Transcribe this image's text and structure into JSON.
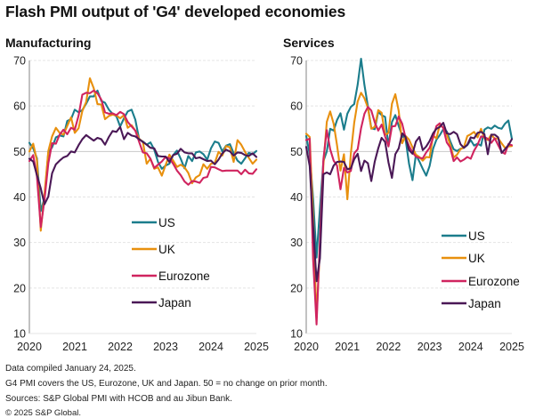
{
  "title": "Flash PMI output of 'G4' developed economies",
  "footnotes": [
    "Data compiled January 24, 2025.",
    "G4 PMI covers the US, Eurozone, UK and Japan. 50 = no change on prior month.",
    "Sources: S&P Global PMI with HCOB and au Jibun Bank.",
    "© 2025 S&P Global."
  ],
  "colors": {
    "US": "#1b7d8c",
    "UK": "#e8900e",
    "Eurozone": "#d0245f",
    "Japan": "#4a1856"
  },
  "chart_data": [
    {
      "type": "line",
      "title": "Manufacturing",
      "xlabel": "",
      "ylabel": "",
      "x_start": "2020-01",
      "x_frequency": "monthly",
      "x_ticks": [
        "2020",
        "2021",
        "2022",
        "2023",
        "2024",
        "2025"
      ],
      "y_ticks": [
        10,
        20,
        30,
        40,
        50,
        60,
        70
      ],
      "ylim": [
        10,
        70
      ],
      "grid": true,
      "legend": "center",
      "series": [
        {
          "name": "US",
          "values": [
            51.9,
            50.7,
            48.5,
            36.9,
            39.8,
            49.8,
            50.9,
            53.1,
            53.5,
            53.3,
            56.7,
            57.1,
            59.2,
            58.6,
            59.1,
            60.5,
            62.1,
            62.1,
            63.4,
            61.1,
            60.7,
            59.2,
            58.3,
            57.7,
            55.5,
            57.3,
            58.8,
            59.2,
            57.0,
            52.7,
            52.2,
            51.5,
            52.0,
            50.4,
            47.7,
            46.2,
            46.9,
            47.3,
            49.2,
            50.2,
            48.4,
            46.3,
            49.0,
            47.9,
            49.8,
            50.0,
            49.4,
            48.2,
            50.7,
            52.2,
            51.9,
            50.0,
            51.3,
            51.6,
            49.6,
            48.0,
            47.3,
            48.5,
            49.7,
            49.4,
            50.1
          ]
        },
        {
          "name": "UK",
          "values": [
            50.0,
            51.7,
            48.0,
            32.6,
            40.7,
            50.1,
            53.3,
            55.2,
            54.1,
            53.7,
            55.6,
            57.5,
            54.1,
            55.1,
            58.9,
            60.9,
            66.1,
            63.9,
            60.4,
            60.3,
            57.1,
            57.8,
            58.1,
            57.9,
            57.3,
            58.0,
            55.2,
            55.8,
            54.6,
            52.8,
            52.1,
            47.3,
            48.4,
            46.2,
            46.5,
            44.7,
            47.0,
            49.3,
            48.0,
            46.6,
            47.1,
            46.5,
            45.3,
            43.0,
            44.3,
            44.8,
            47.2,
            46.2,
            47.3,
            47.5,
            49.9,
            49.1,
            51.2,
            50.9,
            47.7,
            52.5,
            51.5,
            49.9,
            48.6,
            47.3,
            48.2
          ]
        },
        {
          "name": "Eurozone",
          "values": [
            47.9,
            49.2,
            44.5,
            33.4,
            39.4,
            47.4,
            51.8,
            51.7,
            53.7,
            54.8,
            53.8,
            55.2,
            54.8,
            57.9,
            62.5,
            62.9,
            62.8,
            63.4,
            62.8,
            61.4,
            58.6,
            58.3,
            58.4,
            58.0,
            58.7,
            58.2,
            56.5,
            55.5,
            54.6,
            52.1,
            49.8,
            49.6,
            48.4,
            46.4,
            47.1,
            47.8,
            48.8,
            48.5,
            47.3,
            45.8,
            44.8,
            43.4,
            42.7,
            43.5,
            43.4,
            43.1,
            44.2,
            44.4,
            46.6,
            46.5,
            46.1,
            45.7,
            45.8,
            45.8,
            45.8,
            45.8,
            45.0,
            46.0,
            45.2,
            45.1,
            46.1
          ]
        },
        {
          "name": "Japan",
          "values": [
            48.4,
            47.8,
            44.8,
            41.9,
            38.4,
            40.1,
            45.2,
            47.2,
            48.0,
            48.7,
            49.0,
            50.0,
            49.8,
            51.4,
            52.7,
            53.6,
            53.0,
            52.4,
            53.0,
            52.7,
            51.5,
            53.2,
            54.5,
            54.3,
            55.4,
            52.7,
            54.1,
            53.5,
            53.3,
            52.7,
            52.1,
            51.5,
            50.8,
            50.7,
            49.0,
            48.9,
            48.9,
            47.7,
            49.2,
            49.5,
            50.6,
            49.8,
            49.6,
            49.6,
            48.5,
            48.7,
            48.3,
            47.9,
            48.0,
            47.2,
            48.2,
            49.6,
            50.4,
            50.0,
            49.1,
            49.8,
            49.7,
            49.2,
            49.0,
            49.6,
            48.8
          ]
        }
      ]
    },
    {
      "type": "line",
      "title": "Services",
      "xlabel": "",
      "ylabel": "",
      "x_start": "2020-01",
      "x_frequency": "monthly",
      "x_ticks": [
        "2020",
        "2021",
        "2022",
        "2023",
        "2024",
        "2025"
      ],
      "y_ticks": [
        10,
        20,
        30,
        40,
        50,
        60,
        70
      ],
      "ylim": [
        10,
        70
      ],
      "grid": true,
      "legend": "center-right",
      "series": [
        {
          "name": "US",
          "values": [
            53.4,
            49.4,
            39.8,
            26.7,
            37.5,
            47.9,
            50.0,
            55.0,
            54.6,
            56.9,
            58.4,
            54.8,
            58.3,
            59.8,
            60.4,
            64.7,
            70.4,
            64.6,
            59.9,
            55.1,
            54.9,
            58.7,
            58.0,
            57.6,
            51.2,
            56.5,
            58.0,
            55.6,
            53.4,
            52.7,
            47.3,
            43.7,
            49.3,
            47.8,
            46.2,
            44.7,
            46.8,
            50.6,
            52.6,
            53.6,
            54.9,
            54.4,
            52.3,
            50.5,
            50.1,
            50.6,
            50.8,
            51.4,
            52.5,
            51.3,
            51.7,
            51.3,
            54.8,
            55.3,
            55.0,
            55.7,
            55.2,
            55.0,
            56.1,
            56.8,
            52.8
          ]
        },
        {
          "name": "UK",
          "values": [
            53.9,
            53.2,
            35.7,
            13.4,
            29.0,
            47.1,
            56.5,
            58.8,
            56.1,
            51.4,
            45.8,
            49.4,
            39.5,
            49.5,
            56.3,
            61.0,
            62.9,
            61.7,
            59.6,
            55.0,
            55.4,
            59.1,
            58.5,
            53.6,
            54.1,
            60.5,
            62.6,
            58.9,
            51.8,
            53.4,
            52.6,
            50.9,
            49.3,
            48.8,
            48.0,
            48.8,
            48.7,
            53.5,
            52.9,
            55.9,
            55.2,
            53.7,
            51.5,
            48.7,
            49.3,
            50.5,
            50.9,
            53.4,
            53.8,
            54.3,
            53.1,
            55.0,
            52.9,
            52.5,
            53.7,
            52.8,
            52.9,
            51.8,
            50.8,
            51.1,
            51.2
          ]
        },
        {
          "name": "Eurozone",
          "values": [
            52.5,
            52.8,
            26.4,
            12.0,
            30.5,
            48.3,
            54.7,
            50.5,
            48.0,
            46.9,
            41.7,
            46.4,
            45.4,
            45.7,
            49.6,
            50.5,
            55.1,
            58.3,
            59.8,
            59.0,
            56.4,
            54.6,
            55.9,
            53.3,
            51.1,
            55.5,
            55.6,
            57.7,
            56.1,
            53.0,
            51.2,
            49.8,
            48.9,
            48.6,
            48.5,
            49.8,
            50.8,
            53.0,
            55.6,
            56.2,
            55.1,
            52.0,
            50.9,
            47.9,
            48.7,
            47.8,
            48.2,
            48.8,
            48.4,
            50.2,
            51.5,
            53.3,
            53.2,
            52.8,
            51.9,
            52.9,
            51.4,
            49.9,
            49.5,
            51.6,
            51.4
          ]
        },
        {
          "name": "Japan",
          "values": [
            51.0,
            46.8,
            33.8,
            21.5,
            26.5,
            45.0,
            45.4,
            45.0,
            46.9,
            47.7,
            47.8,
            47.7,
            46.1,
            46.3,
            48.3,
            49.5,
            45.7,
            48.0,
            47.4,
            43.5,
            47.8,
            50.7,
            53.0,
            52.1,
            47.6,
            44.2,
            49.4,
            50.7,
            54.0,
            53.2,
            50.3,
            49.5,
            52.2,
            53.2,
            50.3,
            51.1,
            52.3,
            54.0,
            55.0,
            55.4,
            56.3,
            54.0,
            53.8,
            54.3,
            53.8,
            51.6,
            50.8,
            51.5,
            53.1,
            52.9,
            54.1,
            54.3,
            53.8,
            49.4,
            53.7,
            53.7,
            53.1,
            49.7,
            50.5,
            51.4,
            52.7
          ]
        }
      ]
    }
  ]
}
